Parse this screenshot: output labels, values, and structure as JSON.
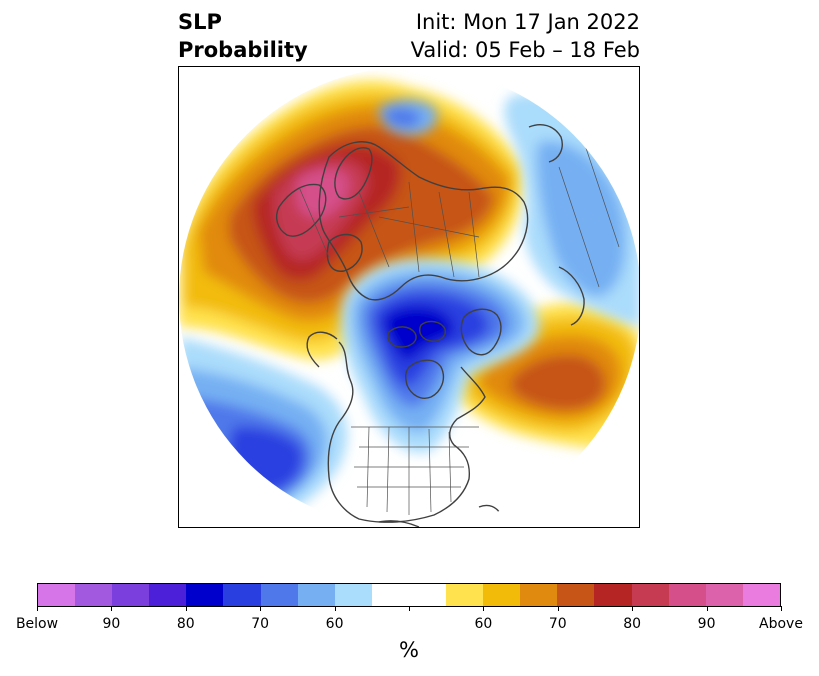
{
  "title": {
    "variable": "SLP",
    "kind": "Probability",
    "init": "Init: Mon 17 Jan 2022",
    "valid": "Valid: 05 Feb – 18 Feb"
  },
  "colorbar": {
    "label": "%",
    "segments": [
      "#d675e8",
      "#a358e0",
      "#7a3fdc",
      "#4b20d8",
      "#0000cc",
      "#2a3fe0",
      "#4f78ea",
      "#76b0f3",
      "#aadcfb",
      "#ffffff",
      "#ffffff",
      "#ffe24d",
      "#f2bb0a",
      "#e18a10",
      "#c65517",
      "#b52524",
      "#c63a52",
      "#d5508a",
      "#dc62ac",
      "#ea7ce0"
    ],
    "tick_labels": [
      "Below",
      "90",
      "80",
      "70",
      "60",
      "60",
      "70",
      "80",
      "90",
      "Above"
    ]
  },
  "map": {
    "projection": "north polar stereographic",
    "features": [
      "coastlines",
      "country borders",
      "US state borders"
    ],
    "colors": {
      "land_lines": "#404040"
    }
  }
}
